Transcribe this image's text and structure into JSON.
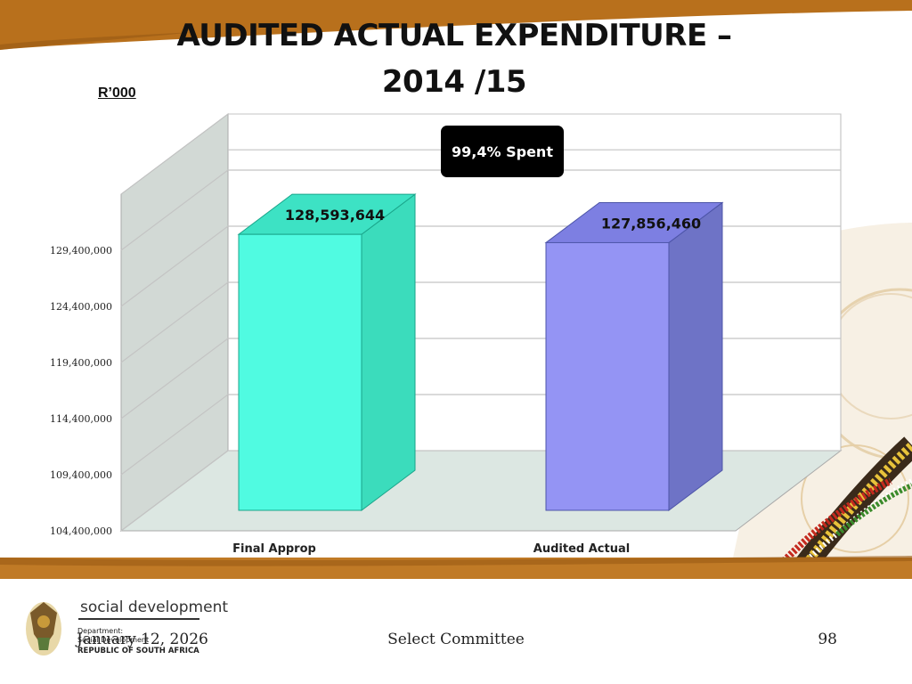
{
  "slide": {
    "title_line1": "AUDITED ACTUAL EXPENDITURE –",
    "title_line2": "2014 /15",
    "unit_label": "R’000",
    "callout": "99,4% Spent"
  },
  "colors": {
    "top_bar": "#b8701c",
    "bar1_front": "#50fbe1",
    "bar1_top": "#3de2c4",
    "bar1_side": "#3bdcbc",
    "bar2_front": "#9494f4",
    "bar2_top": "#7d7fe2",
    "bar2_side": "#6e73c6",
    "wall": "#d2d9d5",
    "floor": "#dce7e2"
  },
  "chart_data": {
    "type": "bar",
    "categories": [
      "Final Approp",
      "Audited Actual"
    ],
    "values": [
      128593644,
      127856460
    ],
    "data_labels": [
      "128,593,644",
      "127,856,460"
    ],
    "y_ticks": [
      104400000,
      109400000,
      114400000,
      119400000,
      124400000,
      129400000
    ],
    "y_tick_labels": [
      "104,400,000",
      "109,400,000",
      "114,400,000",
      "119,400,000",
      "124,400,000",
      "129,400,000"
    ],
    "ylim": [
      104400000,
      134400000
    ],
    "grid": true,
    "three_d": true
  },
  "footer": {
    "org_name": "social development",
    "dept_label": "Department:",
    "dept_sub": "Social Development",
    "republic": "REPUBLIC OF SOUTH AFRICA",
    "date": "January 12, 2026",
    "center": "Select Committee",
    "page": "98"
  }
}
